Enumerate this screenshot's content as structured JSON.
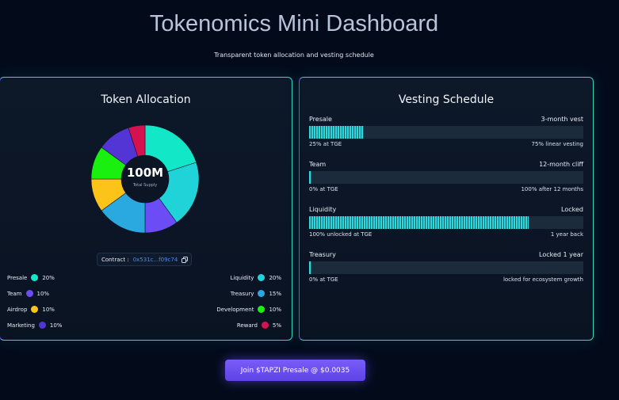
{
  "header": {
    "title": "Tokenomics Mini Dashboard",
    "subtitle": "Transparent token allocation and vesting schedule"
  },
  "allocation": {
    "title": "Token Allocation",
    "center_value": "100M",
    "center_label": "Total Supply",
    "contract_label": "Contract :",
    "contract": "0x531c...f09c74",
    "items": [
      {
        "name": "Presale",
        "value": 20,
        "value_label": "20%",
        "color": "#12e8c8"
      },
      {
        "name": "Liquidity",
        "value": 20,
        "value_label": "20%",
        "color": "#1fd3d8"
      },
      {
        "name": "Team",
        "value": 10,
        "value_label": "10%",
        "color": "#6b4cf5"
      },
      {
        "name": "Treasury",
        "value": 15,
        "value_label": "15%",
        "color": "#2aa9e0"
      },
      {
        "name": "Airdrop",
        "value": 10,
        "value_label": "10%",
        "color": "#fcc419"
      },
      {
        "name": "Development",
        "value": 10,
        "value_label": "10%",
        "color": "#19f00f"
      },
      {
        "name": "Marketing",
        "value": 10,
        "value_label": "10%",
        "color": "#5335d6"
      },
      {
        "name": "Reward",
        "value": 5,
        "value_label": "5%",
        "color": "#d4124f"
      }
    ]
  },
  "vesting": {
    "title": "Vesting Schedule",
    "items": [
      {
        "name": "Presale",
        "term": "3-month vest",
        "progress": 20,
        "left": "25% at TGE",
        "right": "75% linear vesting"
      },
      {
        "name": "Team",
        "term": "12-month cliff",
        "progress": 1,
        "left": "0% at TGE",
        "right": "100% after 12 months"
      },
      {
        "name": "Liquidity",
        "term": "Locked",
        "progress": 80,
        "left": "100% unlocked at TGE",
        "right": "1 year back"
      },
      {
        "name": "Treasury",
        "term": "Locked 1 year",
        "progress": 1,
        "left": "0% at TGE",
        "right": "locked for ecosystem growth"
      }
    ]
  },
  "button": "Join $TAPZI Presale @ $0.0035"
}
